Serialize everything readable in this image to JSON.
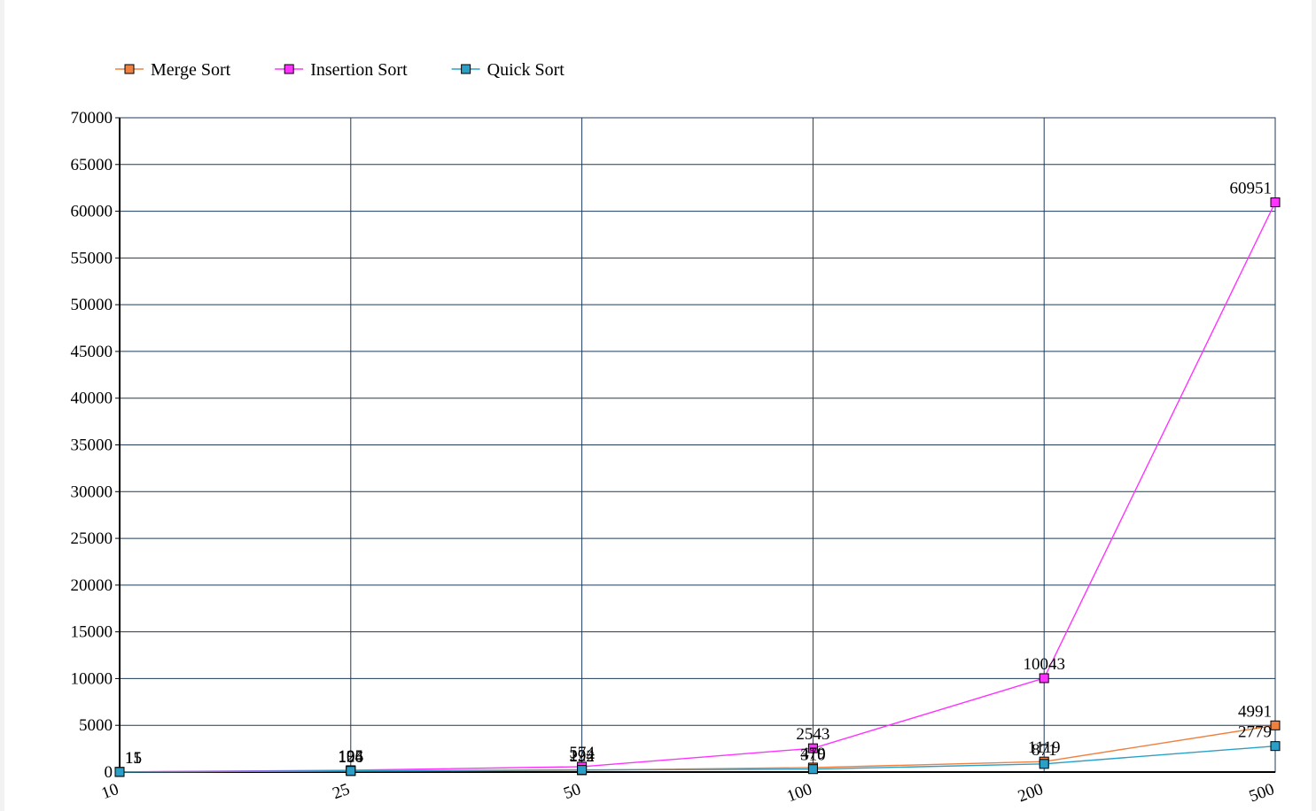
{
  "chart_data": {
    "type": "line",
    "title": "",
    "xlabel": "",
    "ylabel": "",
    "categories": [
      "10",
      "25",
      "50",
      "100",
      "200",
      "500"
    ],
    "ylim": [
      0,
      70000
    ],
    "yticks": [
      "0",
      "5000",
      "10000",
      "15000",
      "20000",
      "25000",
      "30000",
      "35000",
      "40000",
      "45000",
      "50000",
      "55000",
      "60000",
      "65000",
      "70000"
    ],
    "grid": true,
    "legend_position": "top-left",
    "series": [
      {
        "name": "Merge Sort",
        "color": "#f08040",
        "values": [
          15,
          106,
          192,
          479,
          1119,
          4991
        ]
      },
      {
        "name": "Insertion Sort",
        "color": "#ff33ff",
        "values": [
          15,
          195,
          574,
          2543,
          10043,
          60951
        ]
      },
      {
        "name": "Quick Sort",
        "color": "#2aa0c8",
        "values": [
          11,
          124,
          224,
          310,
          871,
          2779
        ]
      }
    ]
  }
}
